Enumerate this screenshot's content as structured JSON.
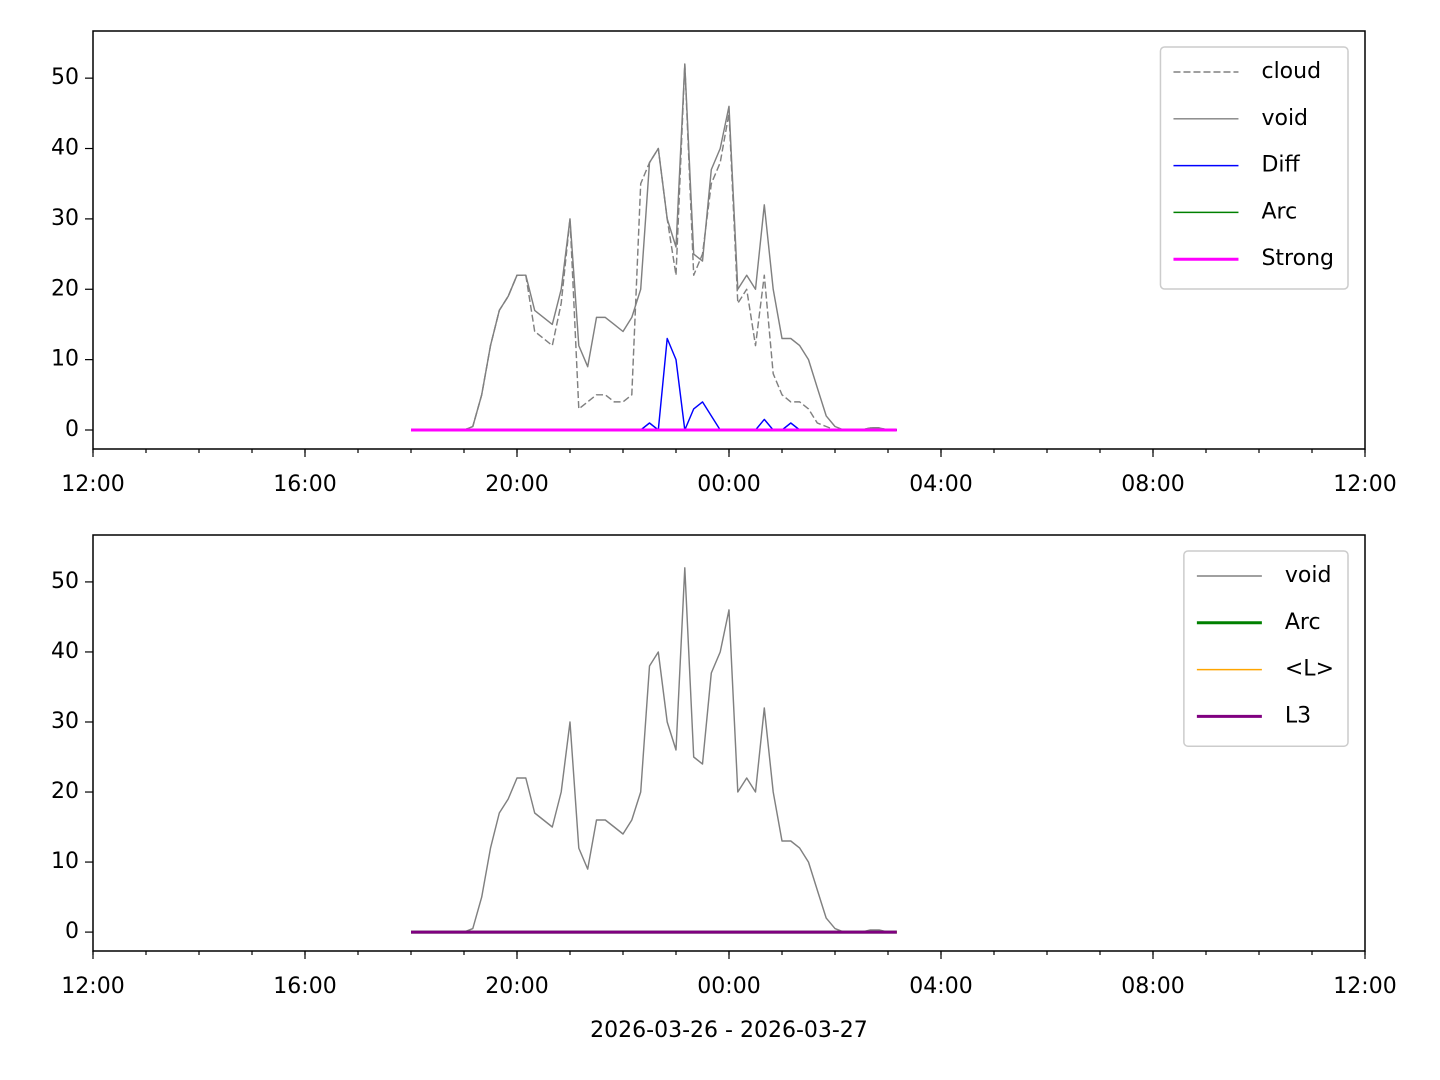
{
  "chart_data": [
    {
      "type": "line",
      "legend": "upper right",
      "x": [
        "2026-03-26 18:00",
        "2026-03-26 18:10",
        "2026-03-26 18:20",
        "2026-03-26 18:30",
        "2026-03-26 18:40",
        "2026-03-26 18:50",
        "2026-03-26 19:00",
        "2026-03-26 19:10",
        "2026-03-26 19:20",
        "2026-03-26 19:30",
        "2026-03-26 19:40",
        "2026-03-26 19:50",
        "2026-03-26 20:00",
        "2026-03-26 20:10",
        "2026-03-26 20:20",
        "2026-03-26 20:30",
        "2026-03-26 20:40",
        "2026-03-26 20:50",
        "2026-03-26 21:00",
        "2026-03-26 21:10",
        "2026-03-26 21:20",
        "2026-03-26 21:30",
        "2026-03-26 21:40",
        "2026-03-26 21:50",
        "2026-03-26 22:00",
        "2026-03-26 22:10",
        "2026-03-26 22:20",
        "2026-03-26 22:30",
        "2026-03-26 22:40",
        "2026-03-26 22:50",
        "2026-03-26 23:00",
        "2026-03-26 23:10",
        "2026-03-26 23:20",
        "2026-03-26 23:30",
        "2026-03-26 23:40",
        "2026-03-26 23:50",
        "2026-03-27 00:00",
        "2026-03-27 00:10",
        "2026-03-27 00:20",
        "2026-03-27 00:30",
        "2026-03-27 00:40",
        "2026-03-27 00:50",
        "2026-03-27 01:00",
        "2026-03-27 01:10",
        "2026-03-27 01:20",
        "2026-03-27 01:30",
        "2026-03-27 01:40",
        "2026-03-27 01:50",
        "2026-03-27 02:00",
        "2026-03-27 02:10",
        "2026-03-27 02:20",
        "2026-03-27 02:30",
        "2026-03-27 02:40",
        "2026-03-27 02:50",
        "2026-03-27 03:00",
        "2026-03-27 03:10"
      ],
      "xlim": [
        "2026-03-26 12:00",
        "2026-03-27 12:00"
      ],
      "xticks": [
        {
          "value": "2026-03-26 12:00",
          "label": "12:00"
        },
        {
          "value": "2026-03-26 16:00",
          "label": "16:00"
        },
        {
          "value": "2026-03-26 20:00",
          "label": "20:00"
        },
        {
          "value": "2026-03-27 00:00",
          "label": "00:00"
        },
        {
          "value": "2026-03-27 04:00",
          "label": "04:00"
        },
        {
          "value": "2026-03-27 08:00",
          "label": "08:00"
        },
        {
          "value": "2026-03-27 12:00",
          "label": "12:00"
        }
      ],
      "ylim": [
        -2.7,
        56.7
      ],
      "yticks": [
        0,
        10,
        20,
        30,
        40,
        50
      ],
      "series": [
        {
          "name": "cloud",
          "color": "#808080",
          "linewidth": 1.2,
          "linestyle": "dashed",
          "values": [
            0,
            0,
            0,
            0,
            0,
            0,
            0,
            0.5,
            5,
            12,
            17,
            19,
            22,
            22,
            14,
            13,
            12,
            18,
            30,
            3,
            4,
            5,
            5,
            4,
            4,
            5,
            35,
            38,
            40,
            30,
            22,
            52,
            22,
            25,
            35,
            38,
            45,
            18,
            20,
            12,
            22,
            8,
            5,
            4,
            4,
            3,
            1,
            0.5,
            0,
            0,
            0,
            0,
            0.3,
            0.3,
            0,
            0
          ]
        },
        {
          "name": "void",
          "color": "#808080",
          "linewidth": 1.2,
          "linestyle": "solid",
          "values": [
            0,
            0,
            0,
            0,
            0,
            0,
            0,
            0.5,
            5,
            12,
            17,
            19,
            22,
            22,
            17,
            16,
            15,
            20,
            30,
            12,
            9,
            16,
            16,
            15,
            14,
            16,
            20,
            38,
            40,
            30,
            26,
            52,
            25,
            24,
            37,
            40,
            46,
            20,
            22,
            20,
            32,
            20,
            13,
            13,
            12,
            10,
            6,
            2,
            0.5,
            0,
            0,
            0,
            0.3,
            0.3,
            0,
            0
          ]
        },
        {
          "name": "Diff",
          "color": "#0000ff",
          "linewidth": 1.2,
          "linestyle": "solid",
          "values": [
            0,
            0,
            0,
            0,
            0,
            0,
            0,
            0,
            0,
            0,
            0,
            0,
            0,
            0,
            0,
            0,
            0,
            0,
            0,
            0,
            0,
            0,
            0,
            0,
            0,
            0,
            0,
            1,
            0,
            13,
            10,
            0,
            3,
            4,
            2,
            0,
            0,
            0,
            0,
            0,
            1.5,
            0,
            0,
            1,
            0,
            0,
            0,
            0,
            0,
            0,
            0,
            0,
            0,
            0,
            0,
            0
          ]
        },
        {
          "name": "Arc",
          "color": "#008000",
          "linewidth": 1.2,
          "linestyle": "solid",
          "values": [
            0,
            0,
            0,
            0,
            0,
            0,
            0,
            0,
            0,
            0,
            0,
            0,
            0,
            0,
            0,
            0,
            0,
            0,
            0,
            0,
            0,
            0,
            0,
            0,
            0,
            0,
            0,
            0,
            0,
            0,
            0,
            0,
            0,
            0,
            0,
            0,
            0,
            0,
            0,
            0,
            0,
            0,
            0,
            0,
            0,
            0,
            0,
            0,
            0,
            0,
            0,
            0,
            0,
            0,
            0,
            0
          ]
        },
        {
          "name": "Strong",
          "color": "#ff00ff",
          "linewidth": 2.5,
          "linestyle": "solid",
          "values": [
            0,
            0,
            0,
            0,
            0,
            0,
            0,
            0,
            0,
            0,
            0,
            0,
            0,
            0,
            0,
            0,
            0,
            0,
            0,
            0,
            0,
            0,
            0,
            0,
            0,
            0,
            0,
            0,
            0,
            0,
            0,
            0,
            0,
            0,
            0,
            0,
            0,
            0,
            0,
            0,
            0,
            0,
            0,
            0,
            0,
            0,
            0,
            0,
            0,
            0,
            0,
            0,
            0,
            0,
            0,
            0
          ]
        }
      ]
    },
    {
      "type": "line",
      "legend": "upper right",
      "xlabel": "2026-03-26 - 2026-03-27",
      "x": [
        "2026-03-26 18:00",
        "2026-03-26 18:10",
        "2026-03-26 18:20",
        "2026-03-26 18:30",
        "2026-03-26 18:40",
        "2026-03-26 18:50",
        "2026-03-26 19:00",
        "2026-03-26 19:10",
        "2026-03-26 19:20",
        "2026-03-26 19:30",
        "2026-03-26 19:40",
        "2026-03-26 19:50",
        "2026-03-26 20:00",
        "2026-03-26 20:10",
        "2026-03-26 20:20",
        "2026-03-26 20:30",
        "2026-03-26 20:40",
        "2026-03-26 20:50",
        "2026-03-26 21:00",
        "2026-03-26 21:10",
        "2026-03-26 21:20",
        "2026-03-26 21:30",
        "2026-03-26 21:40",
        "2026-03-26 21:50",
        "2026-03-26 22:00",
        "2026-03-26 22:10",
        "2026-03-26 22:20",
        "2026-03-26 22:30",
        "2026-03-26 22:40",
        "2026-03-26 22:50",
        "2026-03-26 23:00",
        "2026-03-26 23:10",
        "2026-03-26 23:20",
        "2026-03-26 23:30",
        "2026-03-26 23:40",
        "2026-03-26 23:50",
        "2026-03-27 00:00",
        "2026-03-27 00:10",
        "2026-03-27 00:20",
        "2026-03-27 00:30",
        "2026-03-27 00:40",
        "2026-03-27 00:50",
        "2026-03-27 01:00",
        "2026-03-27 01:10",
        "2026-03-27 01:20",
        "2026-03-27 01:30",
        "2026-03-27 01:40",
        "2026-03-27 01:50",
        "2026-03-27 02:00",
        "2026-03-27 02:10",
        "2026-03-27 02:20",
        "2026-03-27 02:30",
        "2026-03-27 02:40",
        "2026-03-27 02:50",
        "2026-03-27 03:00",
        "2026-03-27 03:10"
      ],
      "xlim": [
        "2026-03-26 12:00",
        "2026-03-27 12:00"
      ],
      "xticks": [
        {
          "value": "2026-03-26 12:00",
          "label": "12:00"
        },
        {
          "value": "2026-03-26 16:00",
          "label": "16:00"
        },
        {
          "value": "2026-03-26 20:00",
          "label": "20:00"
        },
        {
          "value": "2026-03-27 00:00",
          "label": "00:00"
        },
        {
          "value": "2026-03-27 04:00",
          "label": "04:00"
        },
        {
          "value": "2026-03-27 08:00",
          "label": "08:00"
        },
        {
          "value": "2026-03-27 12:00",
          "label": "12:00"
        }
      ],
      "ylim": [
        -2.7,
        56.7
      ],
      "yticks": [
        0,
        10,
        20,
        30,
        40,
        50
      ],
      "series": [
        {
          "name": "void",
          "color": "#808080",
          "linewidth": 1.2,
          "linestyle": "solid",
          "values": [
            0,
            0,
            0,
            0,
            0,
            0,
            0,
            0.5,
            5,
            12,
            17,
            19,
            22,
            22,
            17,
            16,
            15,
            20,
            30,
            12,
            9,
            16,
            16,
            15,
            14,
            16,
            20,
            38,
            40,
            30,
            26,
            52,
            25,
            24,
            37,
            40,
            46,
            20,
            22,
            20,
            32,
            20,
            13,
            13,
            12,
            10,
            6,
            2,
            0.5,
            0,
            0,
            0,
            0.3,
            0.3,
            0,
            0
          ]
        },
        {
          "name": "Arc",
          "color": "#008000",
          "linewidth": 2.5,
          "linestyle": "solid",
          "values": [
            0,
            0,
            0,
            0,
            0,
            0,
            0,
            0,
            0,
            0,
            0,
            0,
            0,
            0,
            0,
            0,
            0,
            0,
            0,
            0,
            0,
            0,
            0,
            0,
            0,
            0,
            0,
            0,
            0,
            0,
            0,
            0,
            0,
            0,
            0,
            0,
            0,
            0,
            0,
            0,
            0,
            0,
            0,
            0,
            0,
            0,
            0,
            0,
            0,
            0,
            0,
            0,
            0,
            0,
            0,
            0
          ]
        },
        {
          "name": "<L>",
          "color": "#ffa500",
          "linewidth": 1.2,
          "linestyle": "solid",
          "values": [
            0,
            0,
            0,
            0,
            0,
            0,
            0,
            0,
            0,
            0,
            0,
            0,
            0,
            0,
            0,
            0,
            0,
            0,
            0,
            0,
            0,
            0,
            0,
            0,
            0,
            0,
            0,
            0,
            0,
            0,
            0,
            0,
            0,
            0,
            0,
            0,
            0,
            0,
            0,
            0,
            0,
            0,
            0,
            0,
            0,
            0,
            0,
            0,
            0,
            0,
            0,
            0,
            0,
            0,
            0,
            0
          ]
        },
        {
          "name": "L3",
          "color": "#800080",
          "linewidth": 2.5,
          "linestyle": "solid",
          "values": [
            0,
            0,
            0,
            0,
            0,
            0,
            0,
            0,
            0,
            0,
            0,
            0,
            0,
            0,
            0,
            0,
            0,
            0,
            0,
            0,
            0,
            0,
            0,
            0,
            0,
            0,
            0,
            0,
            0,
            0,
            0,
            0,
            0,
            0,
            0,
            0,
            0,
            0,
            0,
            0,
            0,
            0,
            0,
            0,
            0,
            0,
            0,
            0,
            0,
            0,
            0,
            0,
            0,
            0,
            0,
            0
          ]
        }
      ]
    }
  ]
}
